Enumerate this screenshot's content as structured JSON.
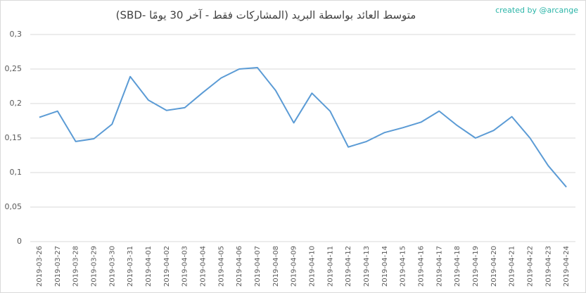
{
  "chart_data": {
    "type": "line",
    "title": "متوسط العائد بواسطة البريد (المشاركات فقط - آخر 30 يومًا -SBD)",
    "watermark": "created by @arcange",
    "categories": [
      "2019-03-26",
      "2019-03-27",
      "2019-03-28",
      "2019-03-29",
      "2019-03-30",
      "2019-03-31",
      "2019-04-01",
      "2019-04-02",
      "2019-04-03",
      "2019-04-04",
      "2019-04-05",
      "2019-04-06",
      "2019-04-07",
      "2019-04-08",
      "2019-04-09",
      "2019-04-10",
      "2019-04-11",
      "2019-04-12",
      "2019-04-13",
      "2019-04-14",
      "2019-04-15",
      "2019-04-16",
      "2019-04-17",
      "2019-04-18",
      "2019-04-19",
      "2019-04-20",
      "2019-04-21",
      "2019-04-22",
      "2019-04-23",
      "2019-04-24"
    ],
    "values": [
      0.18,
      0.189,
      0.145,
      0.149,
      0.17,
      0.239,
      0.205,
      0.19,
      0.194,
      0.216,
      0.237,
      0.25,
      0.252,
      0.219,
      0.172,
      0.215,
      0.189,
      0.137,
      0.145,
      0.158,
      0.165,
      0.173,
      0.189,
      0.168,
      0.15,
      0.161,
      0.181,
      0.15,
      0.11,
      0.079
    ],
    "color": "#5b9bd5",
    "ylim": [
      0,
      0.3
    ],
    "yticks": [
      0,
      {
        "value": 0.05,
        "label": "0,05"
      },
      {
        "value": 0.1,
        "label": "0,1"
      },
      {
        "value": 0.15,
        "label": "0,15"
      },
      {
        "value": 0.2,
        "label": "0,2"
      },
      {
        "value": 0.25,
        "label": "0,25"
      },
      {
        "value": 0.3,
        "label": "0,3"
      }
    ],
    "grid": true
  }
}
